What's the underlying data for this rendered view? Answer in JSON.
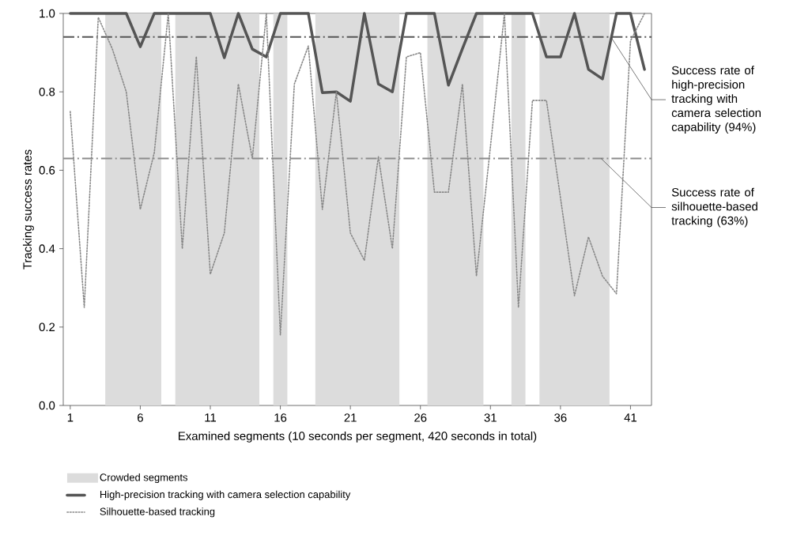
{
  "chart_data": {
    "type": "line",
    "xlabel": "Examined segments (10 seconds per segment, 420 seconds in total)",
    "ylabel": "Tracking success rates",
    "x": [
      1,
      2,
      3,
      4,
      5,
      6,
      7,
      8,
      9,
      10,
      11,
      12,
      13,
      14,
      15,
      16,
      17,
      18,
      19,
      20,
      21,
      22,
      23,
      24,
      25,
      26,
      27,
      28,
      29,
      30,
      31,
      32,
      33,
      34,
      35,
      36,
      37,
      38,
      39,
      40,
      41,
      42
    ],
    "series": [
      {
        "name": "High-precision tracking with camera selection capability",
        "color": "#555555",
        "line_style": "solid",
        "values": [
          1.0,
          1.0,
          1.0,
          1.0,
          1.0,
          0.915,
          1.0,
          1.0,
          1.0,
          1.0,
          1.0,
          0.887,
          1.0,
          0.909,
          0.889,
          1.0,
          1.0,
          1.0,
          0.798,
          0.8,
          0.776,
          1.0,
          0.82,
          0.8,
          1.0,
          1.0,
          1.0,
          0.817,
          0.91,
          1.0,
          1.0,
          1.0,
          1.0,
          1.0,
          0.889,
          0.889,
          1.0,
          0.857,
          0.833,
          1.0,
          1.0,
          0.857
        ]
      },
      {
        "name": "Silhouette-based tracking",
        "color": "#888888",
        "line_style": "dotted",
        "values": [
          0.75,
          0.25,
          0.99,
          0.91,
          0.8,
          0.5,
          0.645,
          1.0,
          0.4,
          0.89,
          0.335,
          0.44,
          0.82,
          0.63,
          1.0,
          0.18,
          0.82,
          0.917,
          0.5,
          0.8,
          0.44,
          0.37,
          0.635,
          0.4,
          0.889,
          0.9,
          0.544,
          0.544,
          0.82,
          0.33,
          0.66,
          1.0,
          0.25,
          0.778,
          0.778,
          0.53,
          0.28,
          0.43,
          0.33,
          0.285,
          0.93,
          1.0
        ]
      }
    ],
    "bands": [
      {
        "axis": "x",
        "from": 3.5,
        "to": 7.5,
        "label": "Crowded segments",
        "color": "#dcdcdc"
      },
      {
        "axis": "x",
        "from": 8.5,
        "to": 14.5,
        "color": "#dcdcdc"
      },
      {
        "axis": "x",
        "from": 15.5,
        "to": 16.5,
        "color": "#dcdcdc"
      },
      {
        "axis": "x",
        "from": 18.5,
        "to": 24.5,
        "color": "#dcdcdc"
      },
      {
        "axis": "x",
        "from": 26.5,
        "to": 30.5,
        "color": "#dcdcdc"
      },
      {
        "axis": "x",
        "from": 32.5,
        "to": 33.5,
        "color": "#dcdcdc"
      },
      {
        "axis": "x",
        "from": 34.5,
        "to": 39.5,
        "color": "#dcdcdc"
      }
    ],
    "ref_lines": [
      {
        "axis": "y",
        "value": 0.94,
        "label": "Success rate of high-precision tracking with camera selection capability (94%)",
        "color": "#555555",
        "line_style": "dashdot"
      },
      {
        "axis": "y",
        "value": 0.63,
        "label": "Success rate of silhouette-based tracking (63%)",
        "color": "#8c8c8c",
        "line_style": "dashdot"
      }
    ],
    "xlim": [
      0.5,
      42.5
    ],
    "xticks": [
      1,
      6,
      11,
      16,
      21,
      26,
      31,
      36,
      41
    ],
    "ylim": [
      0,
      1
    ],
    "yticks": [
      {
        "value": 0,
        "label": "0.0"
      },
      0.2,
      0.4,
      0.6,
      0.8,
      {
        "value": 1,
        "label": "1.0"
      }
    ],
    "grid": false,
    "legend": "bottom",
    "marker": "none"
  }
}
